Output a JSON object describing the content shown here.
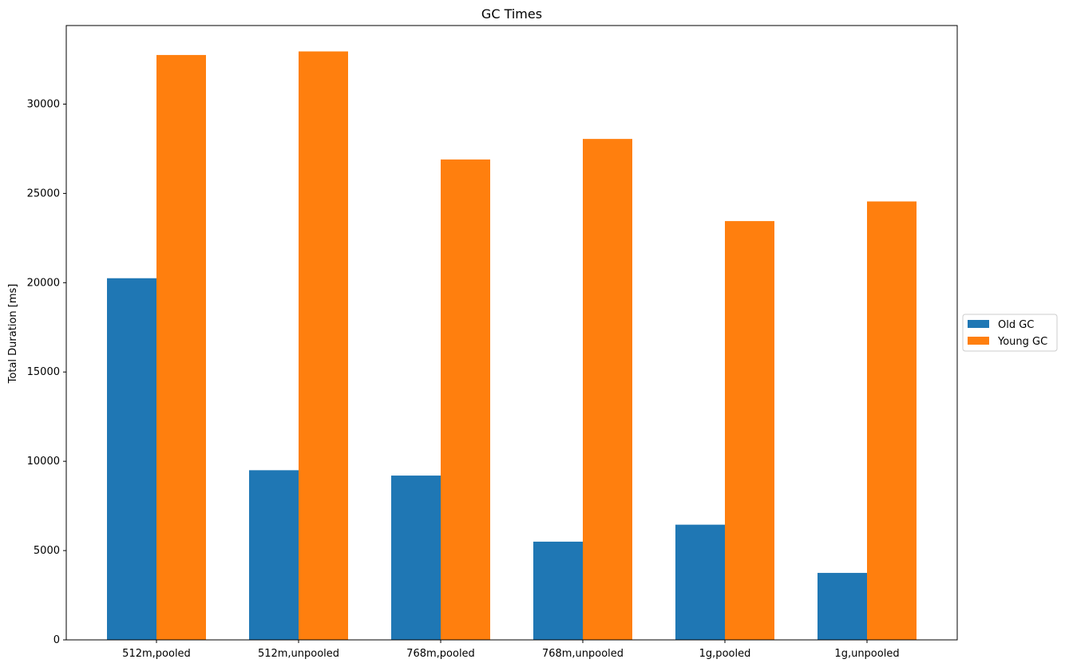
{
  "chart_data": {
    "type": "bar",
    "title": "GC Times",
    "xlabel": "",
    "ylabel": "Total Duration [ms]",
    "categories": [
      "512m,pooled",
      "512m,unpooled",
      "768m,pooled",
      "768m,unpooled",
      "1g,pooled",
      "1g,unpooled"
    ],
    "series": [
      {
        "name": "Old GC",
        "color": "#1f77b4",
        "values": [
          20250,
          9500,
          9200,
          5500,
          6450,
          3750
        ]
      },
      {
        "name": "Young GC",
        "color": "#ff7f0e",
        "values": [
          32750,
          32950,
          26900,
          28050,
          23450,
          24550
        ]
      }
    ],
    "yticks": [
      0,
      5000,
      10000,
      15000,
      20000,
      25000,
      30000
    ],
    "ylim": [
      0,
      34400
    ],
    "grid": false,
    "legend_position": "right"
  }
}
